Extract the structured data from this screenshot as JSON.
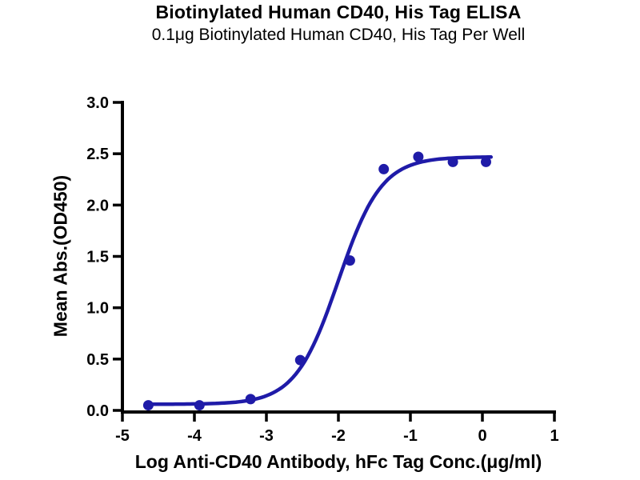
{
  "chart_data": {
    "type": "scatter",
    "title": "Biotinylated Human CD40, His Tag ELISA",
    "subtitle": "0.1μg Biotinylated Human CD40, His Tag Per Well",
    "xlabel": "Log Anti-CD40 Antibody, hFc Tag Conc.(μg/ml)",
    "ylabel": "Mean Abs.(OD450)",
    "xlim": [
      -5,
      1
    ],
    "ylim": [
      0.0,
      3.0
    ],
    "xticks": [
      -5,
      -4,
      -3,
      -2,
      -1,
      0,
      1
    ],
    "xtick_labels": [
      "-5",
      "-4",
      "-3",
      "-2",
      "-1",
      "0",
      "1"
    ],
    "yticks": [
      0.0,
      0.5,
      1.0,
      1.5,
      2.0,
      2.5,
      3.0
    ],
    "ytick_labels": [
      "0.0",
      "0.5",
      "1.0",
      "1.5",
      "2.0",
      "2.5",
      "3.0"
    ],
    "grid": false,
    "legend_position": "none",
    "series": [
      {
        "name": "Anti-CD40 Antibody, hFc Tag",
        "marker": "circle",
        "color": "#1F1BA8",
        "points": [
          {
            "x": -4.64,
            "y": 0.05
          },
          {
            "x": -3.93,
            "y": 0.05
          },
          {
            "x": -3.22,
            "y": 0.11
          },
          {
            "x": -2.53,
            "y": 0.49
          },
          {
            "x": -1.84,
            "y": 1.46
          },
          {
            "x": -1.37,
            "y": 2.35
          },
          {
            "x": -0.89,
            "y": 2.47
          },
          {
            "x": -0.41,
            "y": 2.42
          },
          {
            "x": 0.05,
            "y": 2.42
          }
        ]
      }
    ],
    "fit_curve": {
      "model": "4PL-sigmoid",
      "bottom": 0.06,
      "top": 2.47,
      "log_ec50": -2.0,
      "hill": 1.45,
      "x_start": -4.66,
      "x_end": 0.12,
      "color": "#1F1BA8"
    },
    "colors": {
      "curve": "#1F1BA8",
      "axis": "#000000",
      "text": "#000000",
      "background": "#ffffff"
    }
  }
}
